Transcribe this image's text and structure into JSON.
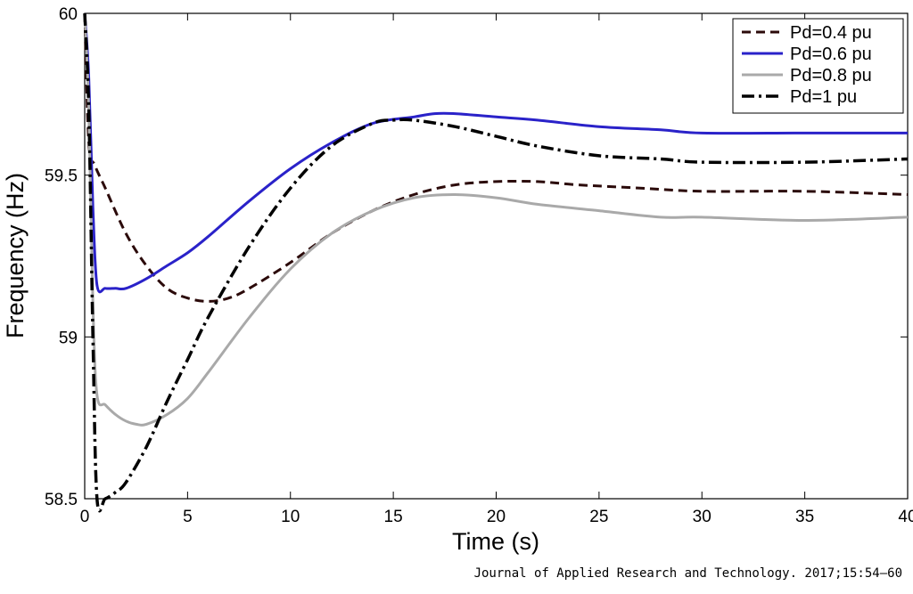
{
  "chart_data": {
    "type": "line",
    "title": "",
    "xlabel": "Time (s)",
    "ylabel": "Frequency (Hz)",
    "xlim": [
      0,
      40
    ],
    "ylim": [
      58.5,
      60
    ],
    "xticks": [
      0,
      5,
      10,
      15,
      20,
      25,
      30,
      35,
      40
    ],
    "yticks": [
      58.5,
      59,
      59.5,
      60
    ],
    "ytick_labels": [
      "58.5",
      "59",
      "59.5",
      "60"
    ],
    "grid": false,
    "legend_position": "top-right",
    "series": [
      {
        "name": "Pd=0.4 pu",
        "color": "#2b0a0a",
        "dash": "dashed",
        "x": [
          0,
          0.2,
          0.5,
          1,
          2,
          3,
          4,
          5,
          6,
          7,
          8,
          10,
          12,
          14,
          16,
          18,
          20,
          22,
          24,
          27,
          30,
          35,
          40
        ],
        "y": [
          60,
          59.6,
          59.53,
          59.46,
          59.32,
          59.22,
          59.15,
          59.12,
          59.11,
          59.12,
          59.15,
          59.23,
          59.32,
          59.39,
          59.44,
          59.47,
          59.48,
          59.48,
          59.47,
          59.46,
          59.45,
          59.45,
          59.44
        ]
      },
      {
        "name": "Pd=0.6 pu",
        "color": "#2a22c9",
        "dash": "solid",
        "x": [
          0,
          0.2,
          0.4,
          0.6,
          1,
          1.5,
          2,
          3,
          4,
          5,
          6,
          8,
          10,
          12,
          14,
          16,
          17,
          18,
          20,
          22,
          25,
          28,
          30,
          35,
          40
        ],
        "y": [
          60,
          59.8,
          59.4,
          59.16,
          59.15,
          59.15,
          59.15,
          59.18,
          59.22,
          59.26,
          59.31,
          59.42,
          59.52,
          59.6,
          59.66,
          59.68,
          59.69,
          59.69,
          59.68,
          59.67,
          59.65,
          59.64,
          59.63,
          59.63,
          59.63
        ]
      },
      {
        "name": "Pd=0.8 pu",
        "color": "#a9a9a9",
        "dash": "solid",
        "x": [
          0,
          0.2,
          0.4,
          0.6,
          1,
          1.5,
          2,
          2.5,
          3,
          4,
          5,
          6,
          8,
          10,
          12,
          14,
          16,
          18,
          20,
          22,
          25,
          28,
          30,
          35,
          40
        ],
        "y": [
          60,
          59.7,
          59.1,
          58.82,
          58.79,
          58.76,
          58.74,
          58.73,
          58.73,
          58.76,
          58.81,
          58.89,
          59.06,
          59.21,
          59.32,
          59.39,
          59.43,
          59.44,
          59.43,
          59.41,
          59.39,
          59.37,
          59.37,
          59.36,
          59.37
        ]
      },
      {
        "name": "Pd=1 pu",
        "color": "#000000",
        "dash": "dash-dot",
        "x": [
          0,
          0.2,
          0.4,
          0.6,
          1,
          1.5,
          2,
          3,
          4,
          5,
          6,
          8,
          10,
          12,
          14,
          15,
          16,
          18,
          20,
          22,
          25,
          28,
          30,
          35,
          40
        ],
        "y": [
          60,
          59.7,
          59.0,
          58.5,
          58.5,
          58.52,
          58.55,
          58.66,
          58.8,
          58.93,
          59.06,
          59.28,
          59.46,
          59.59,
          59.66,
          59.67,
          59.67,
          59.65,
          59.62,
          59.59,
          59.56,
          59.55,
          59.54,
          59.54,
          59.55
        ]
      }
    ]
  },
  "citation": "Journal of Applied Research and Technology. 2017;15:54–60"
}
